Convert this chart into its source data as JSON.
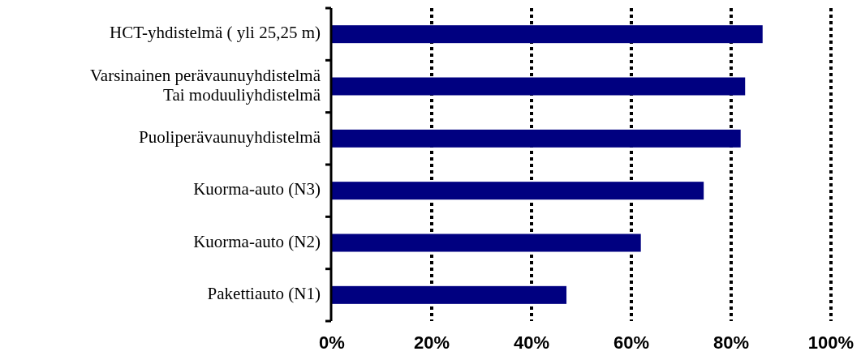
{
  "chart_data": {
    "type": "bar",
    "orientation": "horizontal",
    "categories": [
      "HCT-yhdistelmä ( yli 25,25 m)",
      "Varsinainen perävaunuyhdistelmä\nTai moduuliyhdistelmä",
      "Puoliperävaunuyhdistelmä",
      "Kuorma-auto (N3)",
      "Kuorma-auto (N2)",
      "Pakettiauto (N1)"
    ],
    "values": [
      86.3,
      82.8,
      81.9,
      74.5,
      61.9,
      47.0
    ],
    "color": "#000080",
    "xlim": [
      0,
      100
    ],
    "xticks": [
      {
        "value": 0,
        "label": "0%"
      },
      {
        "value": 20,
        "label": "20%"
      },
      {
        "value": 40,
        "label": "40%"
      },
      {
        "value": 60,
        "label": "60%"
      },
      {
        "value": 80,
        "label": "80%"
      },
      {
        "value": 100,
        "label": "100%"
      }
    ],
    "grid": "x"
  }
}
